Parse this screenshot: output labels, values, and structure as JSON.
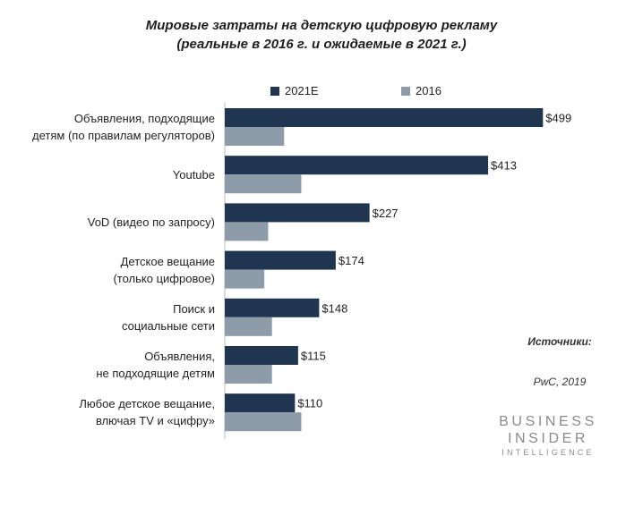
{
  "title_line1": "Мировые затраты на детскую цифровую рекламу",
  "title_line2": "(реальные в 2016 г. и ожидаемые в 2021 г.)",
  "colors": {
    "series_2021": "#1f3550",
    "series_2016": "#8e9ba8",
    "axis": "#bbbbbb"
  },
  "source": {
    "label": "Источники:",
    "value": "PwC, 2019"
  },
  "logo": {
    "line1": "BUSINESS",
    "line2": "INSIDER",
    "line3": "INTELLIGENCE"
  },
  "chart_data": {
    "type": "bar",
    "orientation": "horizontal",
    "title": "Мировые затраты на детскую цифровую рекламу (реальные в 2016 г. и ожидаемые в 2021 г.)",
    "categories": [
      [
        "Объявления, подходящие",
        "детям (по правилам регуляторов)"
      ],
      [
        "Youtube"
      ],
      [
        "VoD (видео по запросу)"
      ],
      [
        "Детское вещание",
        "(только цифровое)"
      ],
      [
        "Поиск и",
        "социальные сети"
      ],
      [
        "Объявления,",
        "не подходящие детям"
      ],
      [
        "Любое детское вещание,",
        "влючая TV и «цифру»"
      ]
    ],
    "series": [
      {
        "name": "2021E",
        "values": [
          499,
          413,
          227,
          174,
          148,
          115,
          110
        ],
        "labels": [
          "$499",
          "$413",
          "$227",
          "$174",
          "$148",
          "$115",
          "$110"
        ]
      },
      {
        "name": "2016",
        "values": [
          93,
          120,
          68,
          62,
          74,
          74,
          120
        ]
      }
    ],
    "xlim": [
      0,
      500
    ],
    "legend_position": "top",
    "grid": false
  }
}
